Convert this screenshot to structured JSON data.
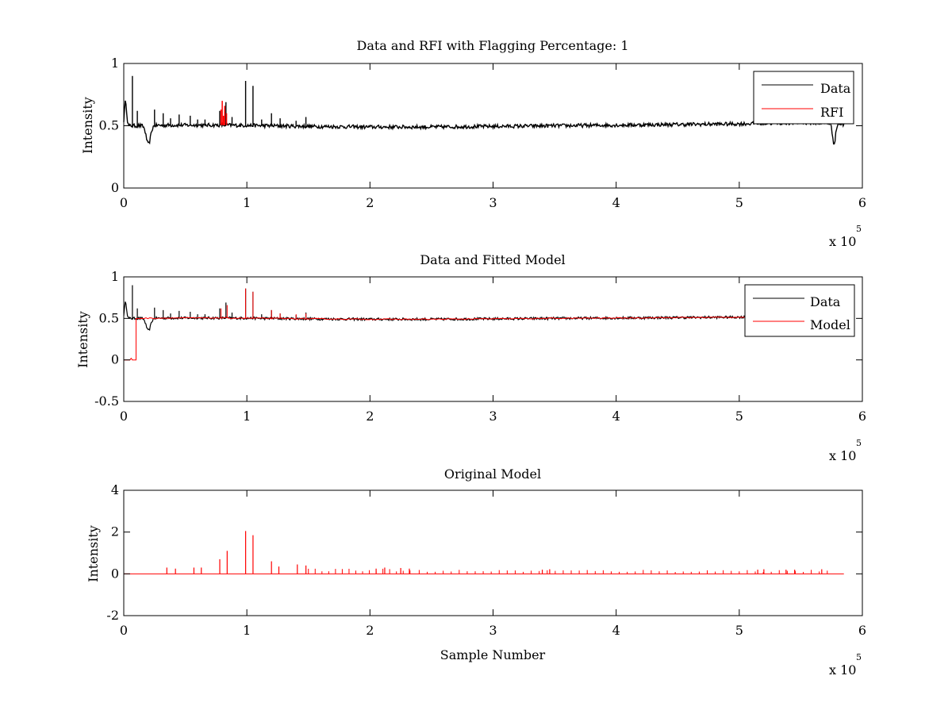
{
  "chart_data": [
    {
      "type": "line",
      "title": "Data and RFI with Flagging Percentage: 1",
      "xlabel": "",
      "ylabel": "Intensity",
      "xlim": [
        0,
        600000
      ],
      "ylim": [
        0,
        1
      ],
      "xticks": [
        0,
        1,
        2,
        3,
        4,
        5,
        6
      ],
      "yticks": [
        0,
        0.5,
        1
      ],
      "x_multiplier_base": "x 10",
      "x_multiplier_exp": "5",
      "legend": {
        "position": "top-right",
        "entries": [
          "Data",
          "RFI"
        ]
      },
      "grid": false,
      "series": [
        {
          "name": "Data",
          "color": "#000000",
          "baseline": [
            [
              0,
              0.5
            ],
            [
              10000,
              0.5
            ],
            [
              40000,
              0.505
            ],
            [
              80000,
              0.505
            ],
            [
              120000,
              0.5
            ],
            [
              150000,
              0.495
            ],
            [
              200000,
              0.49
            ],
            [
              250000,
              0.49
            ],
            [
              300000,
              0.495
            ],
            [
              350000,
              0.5
            ],
            [
              400000,
              0.505
            ],
            [
              450000,
              0.51
            ],
            [
              500000,
              0.515
            ],
            [
              550000,
              0.525
            ],
            [
              580000,
              0.52
            ],
            [
              585000,
              0.505
            ]
          ],
          "features": [
            {
              "x": 1000,
              "y": 0.71
            },
            {
              "x": 3500,
              "y": 0.7
            },
            {
              "x": 7000,
              "y": 0.9
            },
            {
              "x": 11000,
              "y": 0.62
            },
            {
              "x": 20000,
              "y": 0.34
            },
            {
              "x": 25000,
              "y": 0.63
            },
            {
              "x": 32000,
              "y": 0.6
            },
            {
              "x": 38000,
              "y": 0.56
            },
            {
              "x": 45000,
              "y": 0.59
            },
            {
              "x": 54000,
              "y": 0.58
            },
            {
              "x": 60000,
              "y": 0.55
            },
            {
              "x": 66000,
              "y": 0.55
            },
            {
              "x": 78000,
              "y": 0.62
            },
            {
              "x": 83000,
              "y": 0.69
            },
            {
              "x": 88000,
              "y": 0.57
            },
            {
              "x": 99000,
              "y": 0.86
            },
            {
              "x": 105000,
              "y": 0.82
            },
            {
              "x": 112000,
              "y": 0.55
            },
            {
              "x": 120000,
              "y": 0.6
            },
            {
              "x": 127000,
              "y": 0.56
            },
            {
              "x": 140000,
              "y": 0.54
            },
            {
              "x": 148000,
              "y": 0.57
            },
            {
              "x": 577000,
              "y": 0.35
            }
          ]
        },
        {
          "name": "RFI",
          "color": "#ff0000",
          "spikes": [
            {
              "x": 79000,
              "y": 0.63
            },
            {
              "x": 80000,
              "y": 0.7
            },
            {
              "x": 81000,
              "y": 0.58
            },
            {
              "x": 82000,
              "y": 0.66
            },
            {
              "x": 83500,
              "y": 0.6
            }
          ]
        }
      ]
    },
    {
      "type": "line",
      "title": "Data and Fitted Model",
      "xlabel": "",
      "ylabel": "Intensity",
      "xlim": [
        0,
        600000
      ],
      "ylim": [
        -0.5,
        1
      ],
      "xticks": [
        0,
        1,
        2,
        3,
        4,
        5,
        6
      ],
      "yticks": [
        -0.5,
        0,
        0.5,
        1
      ],
      "x_multiplier_base": "x 10",
      "x_multiplier_exp": "5",
      "legend": {
        "position": "top-right",
        "entries": [
          "Data",
          "Model"
        ]
      },
      "grid": false,
      "series": [
        {
          "name": "Data",
          "color": "#000000"
        },
        {
          "name": "Model",
          "color": "#ff0000",
          "step": [
            [
              0,
              0
            ],
            [
              10000,
              0
            ],
            [
              10000,
              0.5
            ]
          ],
          "spikes": [
            {
              "x": 79000,
              "y": 0.62
            },
            {
              "x": 84000,
              "y": 0.66
            },
            {
              "x": 99000,
              "y": 0.86
            },
            {
              "x": 105000,
              "y": 0.82
            },
            {
              "x": 120000,
              "y": 0.6
            },
            {
              "x": 127000,
              "y": 0.56
            },
            {
              "x": 140000,
              "y": 0.55
            },
            {
              "x": 148000,
              "y": 0.56
            }
          ]
        }
      ]
    },
    {
      "type": "line",
      "title": "Original Model",
      "xlabel": "Sample Number",
      "ylabel": "Intensity",
      "xlim": [
        0,
        600000
      ],
      "ylim": [
        -2,
        4
      ],
      "xticks": [
        0,
        1,
        2,
        3,
        4,
        5,
        6
      ],
      "yticks": [
        -2,
        0,
        2,
        4
      ],
      "x_multiplier_base": "x 10",
      "x_multiplier_exp": "5",
      "grid": false,
      "series": [
        {
          "name": "Original Model",
          "color": "#ff0000",
          "baseline": 0,
          "xrange": [
            0,
            585000
          ],
          "spikes": [
            {
              "x": 35000,
              "y": 0.3
            },
            {
              "x": 42000,
              "y": 0.25
            },
            {
              "x": 57000,
              "y": 0.3
            },
            {
              "x": 63000,
              "y": 0.3
            },
            {
              "x": 78000,
              "y": 0.7
            },
            {
              "x": 84000,
              "y": 1.1
            },
            {
              "x": 99000,
              "y": 2.05
            },
            {
              "x": 105000,
              "y": 1.85
            },
            {
              "x": 120000,
              "y": 0.6
            },
            {
              "x": 126000,
              "y": 0.35
            },
            {
              "x": 141000,
              "y": 0.45
            },
            {
              "x": 148000,
              "y": 0.4
            },
            {
              "x": 205000,
              "y": 0.25
            },
            {
              "x": 212000,
              "y": 0.3
            },
            {
              "x": 225000,
              "y": 0.28
            },
            {
              "x": 232000,
              "y": 0.25
            },
            {
              "x": 340000,
              "y": 0.2
            },
            {
              "x": 346000,
              "y": 0.22
            },
            {
              "x": 515000,
              "y": 0.2
            },
            {
              "x": 520000,
              "y": 0.22
            },
            {
              "x": 538000,
              "y": 0.2
            },
            {
              "x": 545000,
              "y": 0.2
            },
            {
              "x": 567000,
              "y": 0.22
            }
          ]
        }
      ]
    }
  ]
}
